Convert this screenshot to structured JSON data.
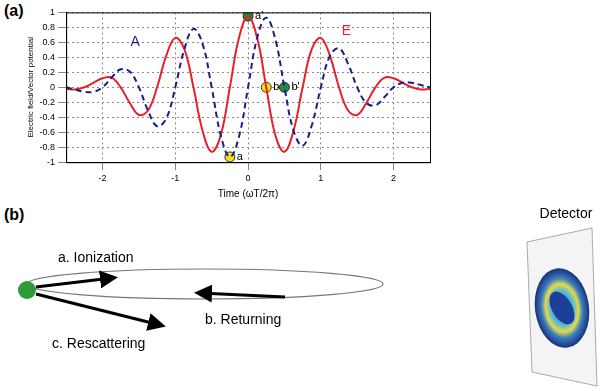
{
  "panel_labels": [
    "(a)",
    "(b)"
  ],
  "chart_data": {
    "type": "line",
    "x_label": "Time (ωT/2π)",
    "y_label": "Electric field/Vector potential",
    "x": [
      -2.5,
      -2.375,
      -2.25,
      -2.125,
      -2,
      -1.875,
      -1.75,
      -1.625,
      -1.5,
      -1.375,
      -1.25,
      -1.125,
      -1,
      -0.875,
      -0.75,
      -0.625,
      -0.5,
      -0.375,
      -0.25,
      -0.125,
      0,
      0.125,
      0.25,
      0.375,
      0.5,
      0.625,
      0.75,
      0.875,
      1,
      1.125,
      1.25,
      1.375,
      1.5,
      1.625,
      1.75,
      1.875,
      2,
      2.125,
      2.25,
      2.375,
      2.5
    ],
    "series": [
      {
        "name": "A",
        "color": "#1c1c8c",
        "line_style": "dashed",
        "name_at": [
          -1.55,
          0.6
        ],
        "values": [
          0,
          -0.03,
          -0.06,
          -0.06,
          0,
          0.13,
          0.24,
          0.21,
          0,
          -0.31,
          -0.52,
          -0.42,
          0,
          0.51,
          0.78,
          0.58,
          0,
          -0.64,
          -0.93,
          -0.66,
          0,
          0.66,
          0.93,
          0.64,
          0,
          -0.58,
          -0.78,
          -0.51,
          0,
          0.42,
          0.52,
          0.31,
          0,
          -0.21,
          -0.24,
          -0.13,
          0,
          0.06,
          0.06,
          0.03,
          0
        ]
      },
      {
        "name": "E",
        "color": "#e8202a",
        "line_style": "solid",
        "name_at": [
          1.35,
          0.75
        ],
        "values": [
          -0.02,
          -0.03,
          0,
          0.06,
          0.12,
          0.13,
          0,
          -0.21,
          -0.37,
          -0.31,
          0,
          0.42,
          0.66,
          0.51,
          0,
          -0.58,
          -0.86,
          -0.64,
          0,
          0.66,
          0.95,
          0.66,
          0,
          -0.64,
          -0.86,
          -0.58,
          0,
          0.51,
          0.66,
          0.42,
          0,
          -0.31,
          -0.37,
          -0.21,
          0,
          0.13,
          0.12,
          0.06,
          0,
          -0.03,
          -0.02
        ]
      }
    ],
    "points": [
      {
        "label": "a",
        "x": -0.25,
        "y": -0.93,
        "color": "#f2e21a"
      },
      {
        "label": "a'",
        "x": 0,
        "y": 0.95,
        "color": "#1e8c3a"
      },
      {
        "label": "b",
        "x": 0.25,
        "y": 0,
        "color": "#f2e21a"
      },
      {
        "label": "b'",
        "x": 0.5,
        "y": 0,
        "color": "#1e8c3a"
      }
    ],
    "xlim": [
      -2.5,
      2.5
    ],
    "xticks": [
      -2,
      -1,
      0,
      1,
      2
    ],
    "ylim": [
      -1,
      1
    ],
    "yticks": [
      -1,
      -0.8,
      -0.6,
      -0.4,
      -0.2,
      0,
      0.2,
      0.4,
      0.6,
      0.8,
      1
    ],
    "grid": true
  },
  "diagram": {
    "steps": [
      "a. Ionization",
      "b. Returning",
      "c. Rescattering"
    ],
    "detector": "Detector"
  }
}
